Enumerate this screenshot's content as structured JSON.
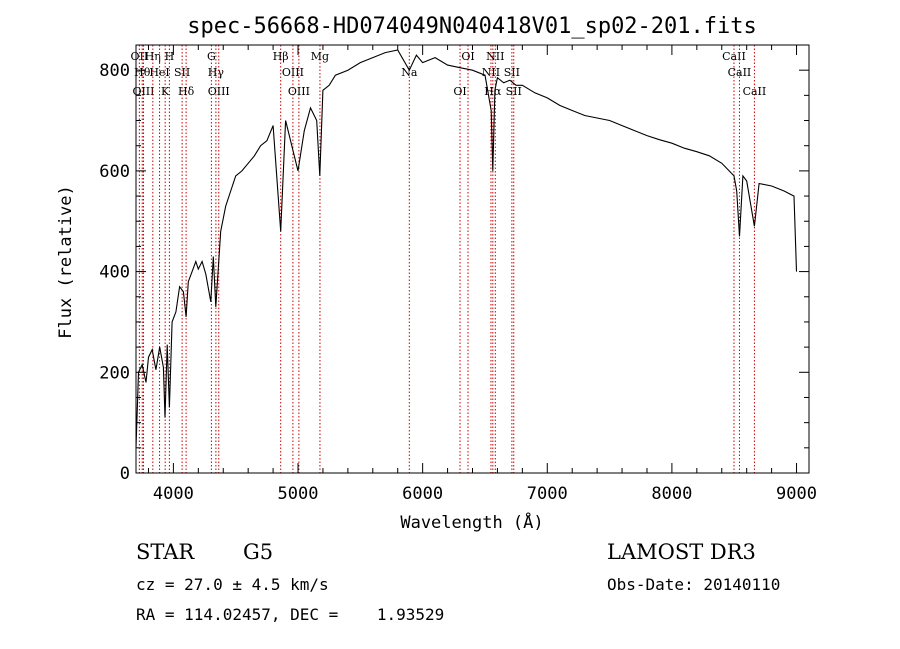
{
  "chart_data": {
    "type": "line",
    "title": "spec-56668-HD074049N040418V01_sp02-201.fits",
    "xlabel": "Wavelength (Å)",
    "ylabel": "Flux (relative)",
    "xlim": [
      3700,
      9100
    ],
    "ylim": [
      0,
      850
    ],
    "xticks": [
      4000,
      5000,
      6000,
      7000,
      8000,
      9000
    ],
    "yticks": [
      0,
      200,
      400,
      600,
      800
    ],
    "line_color": "#000000",
    "marker_color": "#cc0000",
    "series": [
      {
        "x": [
          3700,
          3720,
          3750,
          3780,
          3800,
          3830,
          3860,
          3890,
          3920,
          3933,
          3950,
          3968,
          3990,
          4020,
          4050,
          4080,
          4102,
          4120,
          4150,
          4180,
          4200,
          4230,
          4260,
          4300,
          4320,
          4340,
          4380,
          4420,
          4460,
          4500,
          4550,
          4600,
          4650,
          4700,
          4750,
          4800,
          4861,
          4900,
          4950,
          5000,
          5050,
          5100,
          5150,
          5175,
          5200,
          5250,
          5300,
          5400,
          5500,
          5600,
          5700,
          5800,
          5893,
          5950,
          6000,
          6100,
          6200,
          6300,
          6400,
          6500,
          6550,
          6563,
          6580,
          6600,
          6650,
          6700,
          6750,
          6800,
          6900,
          7000,
          7100,
          7200,
          7300,
          7400,
          7500,
          7600,
          7700,
          7800,
          7900,
          8000,
          8100,
          8200,
          8300,
          8400,
          8498,
          8520,
          8542,
          8570,
          8600,
          8662,
          8700,
          8800,
          8900,
          8980,
          9000
        ],
        "values": [
          50,
          200,
          215,
          180,
          230,
          245,
          205,
          250,
          210,
          110,
          255,
          130,
          300,
          320,
          370,
          360,
          310,
          380,
          400,
          420,
          405,
          420,
          395,
          340,
          430,
          330,
          480,
          530,
          560,
          590,
          600,
          615,
          630,
          650,
          660,
          690,
          480,
          700,
          650,
          600,
          680,
          725,
          700,
          590,
          760,
          770,
          790,
          800,
          815,
          825,
          835,
          840,
          800,
          830,
          815,
          825,
          810,
          805,
          800,
          790,
          720,
          600,
          760,
          785,
          775,
          780,
          770,
          770,
          755,
          745,
          730,
          720,
          710,
          705,
          700,
          690,
          680,
          670,
          662,
          655,
          645,
          638,
          630,
          615,
          590,
          560,
          470,
          590,
          580,
          490,
          575,
          570,
          560,
          550,
          400
        ]
      }
    ],
    "markers": [
      {
        "label": "OII",
        "x": 3727
      },
      {
        "label": "Hθ",
        "x": 3750
      },
      {
        "label": "OIII",
        "x": 3760
      },
      {
        "label": "Hη",
        "x": 3835
      },
      {
        "label": "HeI",
        "x": 3889
      },
      {
        "label": "K",
        "x": 3934
      },
      {
        "label": "H",
        "x": 3968
      },
      {
        "label": "SII",
        "x": 4070
      },
      {
        "label": "Hδ",
        "x": 4102
      },
      {
        "label": "G",
        "x": 4305
      },
      {
        "label": "Hγ",
        "x": 4341
      },
      {
        "label": "OIII",
        "x": 4364
      },
      {
        "label": "Hβ",
        "x": 4861
      },
      {
        "label": "OIII",
        "x": 4959
      },
      {
        "label": "OIII",
        "x": 5007
      },
      {
        "label": "Mg",
        "x": 5176
      },
      {
        "label": "Na",
        "x": 5893
      },
      {
        "label": "OI",
        "x": 6300
      },
      {
        "label": "OI",
        "x": 6364
      },
      {
        "label": "NII",
        "x": 6548
      },
      {
        "label": "Hα",
        "x": 6563
      },
      {
        "label": "NII",
        "x": 6583
      },
      {
        "label": "SII",
        "x": 6716
      },
      {
        "label": "SII",
        "x": 6731
      },
      {
        "label": "CaII",
        "x": 8498
      },
      {
        "label": "CaII",
        "x": 8542
      },
      {
        "label": "CaII",
        "x": 8662
      }
    ]
  },
  "info": {
    "object_class": "STAR",
    "subclass": "G5",
    "survey": "LAMOST DR3",
    "cz": "cz = 27.0 ± 4.5 km/s",
    "obs_date": "Obs-Date: 20140110",
    "coords": "RA = 114.02457, DEC =    1.93529"
  }
}
